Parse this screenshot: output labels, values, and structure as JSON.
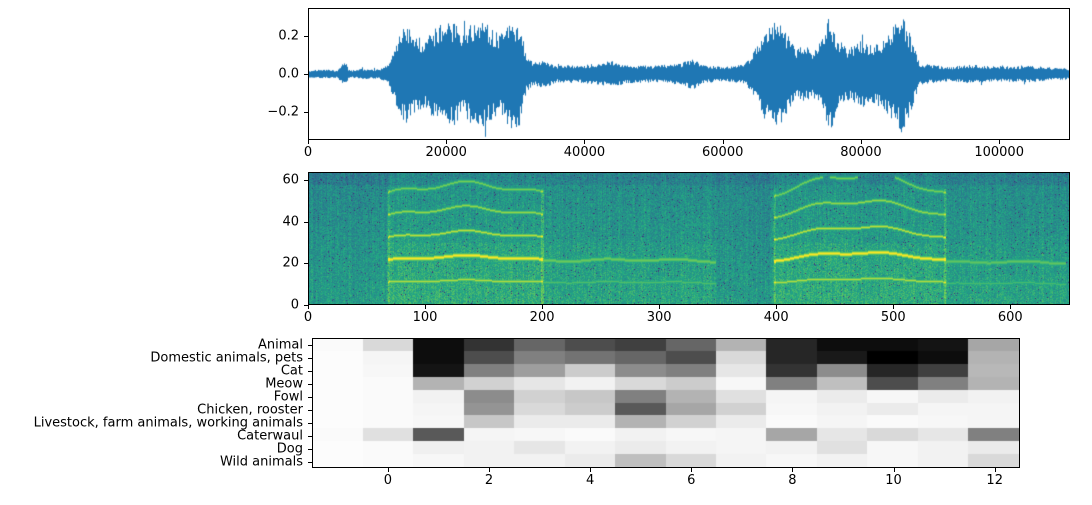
{
  "figure": {
    "background": "#ffffff"
  },
  "chart_data": [
    {
      "type": "line",
      "name": "waveform",
      "line_color": "#1f77b4",
      "xlim": [
        0,
        110250
      ],
      "ylim": [
        -0.35,
        0.35
      ],
      "xticks": [
        0,
        20000,
        40000,
        60000,
        80000,
        100000
      ],
      "yticks": [
        {
          "value": 0.2,
          "label": "0.2"
        },
        {
          "value": 0.0,
          "label": "0.0"
        },
        {
          "value": -0.2,
          "label": "−0.2"
        }
      ],
      "envelope": {
        "x": [
          0,
          2000,
          4000,
          5200,
          5600,
          6000,
          8000,
          10000,
          11500,
          12500,
          14000,
          16500,
          18000,
          19500,
          21000,
          22500,
          23500,
          25000,
          26000,
          27500,
          29000,
          30500,
          31500,
          32500,
          34000,
          36000,
          40000,
          44000,
          46000,
          50000,
          54000,
          55500,
          57000,
          60000,
          63000,
          64500,
          66000,
          67500,
          69000,
          70500,
          72000,
          73500,
          75500,
          76500,
          78000,
          80000,
          82000,
          84000,
          86000,
          87500,
          88500,
          90000,
          93000,
          96000,
          100000,
          104000,
          108000,
          110250
        ],
        "amplitude": [
          0.02,
          0.025,
          0.02,
          0.07,
          0.03,
          0.02,
          0.03,
          0.025,
          0.05,
          0.18,
          0.27,
          0.18,
          0.24,
          0.3,
          0.28,
          0.22,
          0.27,
          0.3,
          0.26,
          0.22,
          0.3,
          0.28,
          0.1,
          0.06,
          0.08,
          0.045,
          0.05,
          0.07,
          0.05,
          0.045,
          0.06,
          0.09,
          0.05,
          0.04,
          0.05,
          0.12,
          0.26,
          0.3,
          0.24,
          0.14,
          0.15,
          0.13,
          0.33,
          0.2,
          0.14,
          0.18,
          0.16,
          0.22,
          0.32,
          0.18,
          0.06,
          0.05,
          0.04,
          0.05,
          0.04,
          0.045,
          0.035,
          0.03
        ]
      }
    },
    {
      "type": "heatmap",
      "name": "log-mel-spectrogram",
      "colormap": "viridis",
      "xlim": [
        0,
        651
      ],
      "ylim": [
        0,
        64
      ],
      "xticks": [
        0,
        100,
        200,
        300,
        400,
        500,
        600
      ],
      "yticks": [
        0,
        20,
        40,
        60
      ],
      "harmonic_segments": [
        {
          "x_start": 68,
          "x_end": 200,
          "f0_bin": 10.8,
          "harmonics": 6,
          "strength": 1.0,
          "arc": 1.0
        },
        {
          "x_start": 200,
          "x_end": 348,
          "f0_bin": 10.6,
          "harmonics": 2,
          "strength": 0.55,
          "arc": 0.3
        },
        {
          "x_start": 398,
          "x_end": 545,
          "f0_bin": 10.8,
          "harmonics": 5,
          "strength": 1.0,
          "arc": 1.8
        },
        {
          "x_start": 545,
          "x_end": 648,
          "f0_bin": 10.2,
          "harmonics": 2,
          "strength": 0.5,
          "arc": 0.2
        }
      ]
    },
    {
      "type": "heatmap",
      "name": "framewise-class-predictions",
      "colormap": "gray_r",
      "xlim": [
        -1.5,
        12.5
      ],
      "xticks": [
        0,
        2,
        4,
        6,
        8,
        10,
        12
      ],
      "classes": [
        "Animal",
        "Domestic animals, pets",
        "Cat",
        "Meow",
        "Fowl",
        "Chicken, rooster",
        "Livestock, farm animals, working animals",
        "Caterwaul",
        "Dog",
        "Wild animals"
      ],
      "values": [
        [
          0.02,
          0.15,
          0.95,
          0.8,
          0.6,
          0.7,
          0.75,
          0.6,
          0.3,
          0.85,
          0.95,
          0.95,
          0.92,
          0.35
        ],
        [
          0.01,
          0.04,
          0.95,
          0.7,
          0.5,
          0.55,
          0.6,
          0.7,
          0.15,
          0.85,
          0.9,
          1.0,
          0.95,
          0.3
        ],
        [
          0.01,
          0.03,
          0.92,
          0.5,
          0.38,
          0.2,
          0.45,
          0.5,
          0.1,
          0.8,
          0.45,
          0.85,
          0.75,
          0.28
        ],
        [
          0.01,
          0.02,
          0.3,
          0.18,
          0.1,
          0.05,
          0.15,
          0.2,
          0.03,
          0.5,
          0.25,
          0.7,
          0.5,
          0.3
        ],
        [
          0.01,
          0.02,
          0.05,
          0.45,
          0.18,
          0.22,
          0.5,
          0.3,
          0.12,
          0.04,
          0.08,
          0.03,
          0.08,
          0.05
        ],
        [
          0.01,
          0.02,
          0.04,
          0.42,
          0.15,
          0.2,
          0.65,
          0.35,
          0.18,
          0.03,
          0.05,
          0.08,
          0.04,
          0.04
        ],
        [
          0.01,
          0.02,
          0.03,
          0.22,
          0.08,
          0.08,
          0.3,
          0.18,
          0.08,
          0.02,
          0.04,
          0.02,
          0.03,
          0.04
        ],
        [
          0.02,
          0.12,
          0.65,
          0.04,
          0.03,
          0.02,
          0.05,
          0.03,
          0.04,
          0.35,
          0.1,
          0.15,
          0.1,
          0.5
        ],
        [
          0.01,
          0.02,
          0.06,
          0.05,
          0.1,
          0.05,
          0.08,
          0.05,
          0.04,
          0.05,
          0.12,
          0.03,
          0.05,
          0.08
        ],
        [
          0.01,
          0.02,
          0.03,
          0.05,
          0.05,
          0.08,
          0.25,
          0.15,
          0.05,
          0.03,
          0.05,
          0.03,
          0.05,
          0.15
        ]
      ]
    }
  ]
}
